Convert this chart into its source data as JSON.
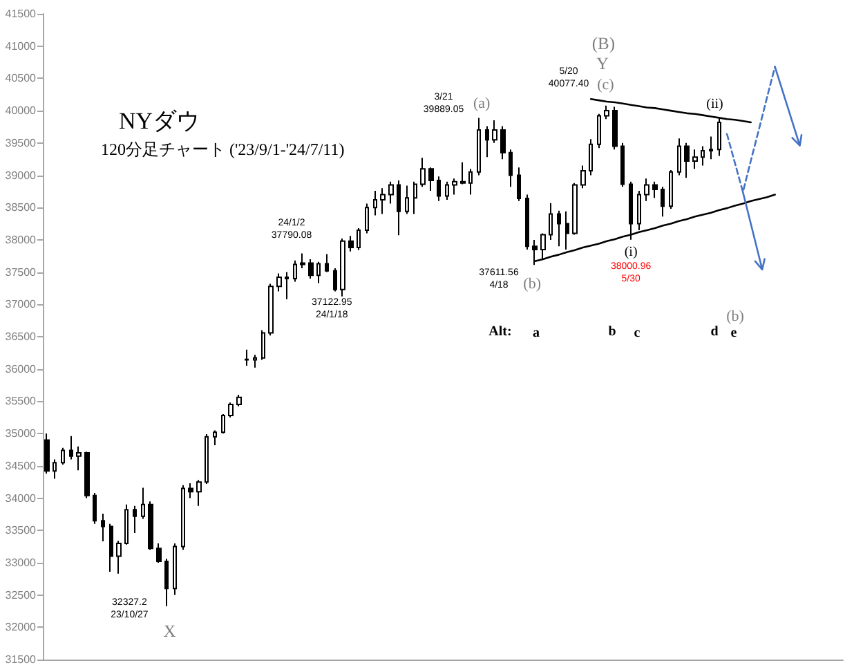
{
  "chart_data": {
    "type": "candlestick",
    "title": "NYダウ",
    "subtitle": "120分足チャート ('23/9/1-'24/7/11)",
    "color": "#000000",
    "categories": [
      null,
      null,
      null,
      null,
      null,
      null,
      null,
      null,
      null,
      null,
      null,
      null,
      null,
      null,
      null,
      null,
      null,
      null,
      null,
      null,
      null,
      null,
      null,
      null,
      null,
      null,
      null,
      null,
      null,
      null,
      null,
      null,
      null,
      null,
      null,
      null,
      null,
      null,
      null,
      null,
      null,
      null,
      null,
      null,
      null,
      null,
      null,
      null,
      null,
      null,
      null,
      null,
      null,
      null,
      null,
      null,
      null,
      null,
      null,
      null,
      null,
      null,
      null,
      null,
      null,
      null,
      null,
      null,
      null,
      null,
      null,
      null,
      null,
      null,
      null,
      null,
      null,
      null,
      null,
      null,
      null,
      null,
      null,
      null,
      null,
      null,
      null,
      null,
      null,
      null,
      null,
      null,
      null,
      null,
      null,
      null,
      null,
      null,
      null,
      null
    ],
    "ohlc": [
      [
        34900,
        35000,
        34380,
        34420
      ],
      [
        34420,
        34600,
        34300,
        34550
      ],
      [
        34550,
        34780,
        34520,
        34740
      ],
      [
        34740,
        34960,
        34600,
        34650
      ],
      [
        34650,
        34800,
        34430,
        34700
      ],
      [
        34700,
        34720,
        34000,
        34040
      ],
      [
        34040,
        34080,
        33600,
        33650
      ],
      [
        33650,
        33760,
        33330,
        33560
      ],
      [
        33560,
        33600,
        32860,
        33100
      ],
      [
        33100,
        33340,
        32830,
        33300
      ],
      [
        33300,
        33900,
        33280,
        33820
      ],
      [
        33820,
        33880,
        33460,
        33720
      ],
      [
        33720,
        34160,
        33680,
        33900
      ],
      [
        33900,
        33950,
        33200,
        33220
      ],
      [
        33220,
        33300,
        33000,
        33020
      ],
      [
        33020,
        33060,
        32327.2,
        32600
      ],
      [
        32600,
        33300,
        32500,
        33250
      ],
      [
        33250,
        34200,
        33200,
        34150
      ],
      [
        34150,
        34230,
        34000,
        34100
      ],
      [
        34100,
        34280,
        33880,
        34250
      ],
      [
        34250,
        34990,
        34220,
        34950
      ],
      [
        34950,
        35050,
        34820,
        35020
      ],
      [
        35020,
        35300,
        35000,
        35280
      ],
      [
        35280,
        35480,
        35250,
        35450
      ],
      [
        35450,
        35600,
        35420,
        35560
      ],
      [
        36150,
        36300,
        36050,
        36140
      ],
      [
        36140,
        36220,
        36020,
        36170
      ],
      [
        36170,
        36600,
        36140,
        36560
      ],
      [
        36560,
        37320,
        36520,
        37280
      ],
      [
        37280,
        37480,
        37200,
        37420
      ],
      [
        37420,
        37500,
        37080,
        37400
      ],
      [
        37400,
        37680,
        37350,
        37620
      ],
      [
        37620,
        37790.08,
        37560,
        37640
      ],
      [
        37640,
        37700,
        37400,
        37450
      ],
      [
        37450,
        37660,
        37330,
        37630
      ],
      [
        37630,
        37780,
        37500,
        37520
      ],
      [
        37520,
        37560,
        37200,
        37230
      ],
      [
        37230,
        38020,
        37122.95,
        37980
      ],
      [
        37980,
        38060,
        37820,
        37880
      ],
      [
        37880,
        38180,
        37840,
        38150
      ],
      [
        38150,
        38560,
        38100,
        38500
      ],
      [
        38500,
        38760,
        38380,
        38620
      ],
      [
        38620,
        38800,
        38400,
        38700
      ],
      [
        38700,
        38900,
        38560,
        38850
      ],
      [
        38850,
        38920,
        38070,
        38440
      ],
      [
        38440,
        38840,
        38400,
        38650
      ],
      [
        38650,
        38900,
        38400,
        38860
      ],
      [
        38860,
        39270,
        38820,
        39100
      ],
      [
        39100,
        39120,
        38760,
        38920
      ],
      [
        38920,
        38980,
        38600,
        38680
      ],
      [
        38680,
        38900,
        38620,
        38850
      ],
      [
        38850,
        38950,
        38700,
        38900
      ],
      [
        38900,
        39200,
        38860,
        38880
      ],
      [
        38880,
        39100,
        38700,
        39050
      ],
      [
        39050,
        39889.05,
        39000,
        39700
      ],
      [
        39700,
        39760,
        39280,
        39550
      ],
      [
        39550,
        39850,
        39500,
        39700
      ],
      [
        39700,
        39760,
        39250,
        39350
      ],
      [
        39350,
        39400,
        38820,
        39000
      ],
      [
        39000,
        39120,
        38600,
        38640
      ],
      [
        38640,
        38700,
        37850,
        37900
      ],
      [
        37900,
        38000,
        37611.56,
        37850
      ],
      [
        37850,
        38100,
        37700,
        38080
      ],
      [
        38080,
        38570,
        38000,
        38400
      ],
      [
        38400,
        38450,
        37900,
        38250
      ],
      [
        38250,
        38440,
        37850,
        38100
      ],
      [
        38100,
        38880,
        38080,
        38850
      ],
      [
        38850,
        39150,
        38800,
        39070
      ],
      [
        39070,
        39560,
        39000,
        39480
      ],
      [
        39480,
        39950,
        39420,
        39920
      ],
      [
        39920,
        40077.4,
        39870,
        40000
      ],
      [
        40000,
        40060,
        39400,
        39450
      ],
      [
        39450,
        39500,
        38820,
        38860
      ],
      [
        38860,
        38900,
        38000.96,
        38250
      ],
      [
        38250,
        38760,
        38150,
        38700
      ],
      [
        38700,
        38950,
        38600,
        38850
      ],
      [
        38850,
        38900,
        38650,
        38780
      ],
      [
        38780,
        38820,
        38360,
        38520
      ],
      [
        38520,
        39080,
        38480,
        39050
      ],
      [
        39050,
        39570,
        39000,
        39450
      ],
      [
        39450,
        39500,
        38960,
        39220
      ],
      [
        39220,
        39400,
        39100,
        39280
      ],
      [
        39280,
        39450,
        39150,
        39380
      ],
      [
        39380,
        39600,
        39250,
        39400
      ],
      [
        39400,
        39880,
        39300,
        39820
      ],
      null,
      null,
      null,
      null,
      null,
      null,
      null,
      null,
      null,
      null,
      null,
      null,
      null,
      null,
      null
    ],
    "series": [
      {
        "type": "line",
        "color": "#000000",
        "values": [
          null,
          null,
          null,
          null,
          null,
          null,
          null,
          null,
          null,
          null,
          null,
          null,
          null,
          null,
          null,
          null,
          null,
          null,
          null,
          null,
          null,
          null,
          null,
          null,
          null,
          null,
          null,
          null,
          null,
          null,
          null,
          null,
          null,
          null,
          null,
          null,
          null,
          null,
          null,
          null,
          null,
          null,
          null,
          null,
          null,
          null,
          null,
          null,
          null,
          null,
          null,
          null,
          null,
          null,
          null,
          null,
          null,
          null,
          null,
          null,
          null,
          null,
          null,
          null,
          null,
          null,
          null,
          null,
          40180,
          40160,
          40140,
          40130,
          40110,
          40090,
          40070,
          40050,
          40040,
          40020,
          40000,
          39980,
          39960,
          39950,
          39930,
          39910,
          39890,
          39870,
          39860,
          39840,
          39820,
          null,
          null,
          null,
          null,
          null,
          null,
          null,
          null,
          null,
          null,
          null
        ]
      },
      {
        "type": "line",
        "color": "#000000",
        "values": [
          null,
          null,
          null,
          null,
          null,
          null,
          null,
          null,
          null,
          null,
          null,
          null,
          null,
          null,
          null,
          null,
          null,
          null,
          null,
          null,
          null,
          null,
          null,
          null,
          null,
          null,
          null,
          null,
          null,
          null,
          null,
          null,
          null,
          null,
          null,
          null,
          null,
          null,
          null,
          null,
          null,
          null,
          null,
          null,
          null,
          null,
          null,
          null,
          null,
          null,
          null,
          null,
          null,
          null,
          null,
          null,
          null,
          null,
          null,
          null,
          null,
          37670,
          37700,
          37740,
          37770,
          37810,
          37840,
          37880,
          37910,
          37940,
          37980,
          38010,
          38050,
          38080,
          38120,
          38150,
          38180,
          38220,
          38250,
          38290,
          38320,
          38360,
          38390,
          38420,
          38460,
          38490,
          38530,
          38560,
          38600,
          38630,
          38660,
          38700,
          null,
          null,
          null,
          null,
          null,
          null,
          null,
          null
        ]
      },
      {
        "type": "line",
        "color": "#4472c4",
        "line_style": "dashed",
        "values": [
          null,
          null,
          null,
          null,
          null,
          null,
          null,
          null,
          null,
          null,
          null,
          null,
          null,
          null,
          null,
          null,
          null,
          null,
          null,
          null,
          null,
          null,
          null,
          null,
          null,
          null,
          null,
          null,
          null,
          null,
          null,
          null,
          null,
          null,
          null,
          null,
          null,
          null,
          null,
          null,
          null,
          null,
          null,
          null,
          null,
          null,
          null,
          null,
          null,
          null,
          null,
          null,
          null,
          null,
          null,
          null,
          null,
          null,
          null,
          null,
          null,
          null,
          null,
          null,
          null,
          null,
          null,
          null,
          null,
          null,
          null,
          null,
          null,
          null,
          null,
          null,
          null,
          null,
          null,
          null,
          null,
          null,
          null,
          null,
          null,
          39640,
          39190,
          38740,
          39230,
          39710,
          40200,
          40680,
          null,
          null,
          null,
          null,
          null,
          null,
          null,
          null
        ]
      }
    ],
    "ylim": [
      31500,
      41500
    ],
    "yticks": [
      31500,
      32000,
      32500,
      33000,
      33500,
      34000,
      34500,
      35000,
      35500,
      36000,
      36500,
      37000,
      37500,
      38000,
      38500,
      39000,
      39500,
      40000,
      40500,
      41000,
      41500
    ],
    "tick_labels": "y",
    "annotations": [
      "3/21\n39889.05",
      {
        "text": "(a)",
        "y": 39889.05
      },
      "5/20\n40077.40",
      {
        "text": "(c)",
        "y": 40077.4
      },
      "Y",
      "(B)",
      "24/1/2\n37790.08",
      {
        "text": "37122.95\n24/1/18",
        "y": 37122.95
      },
      "37611.56\n4/18",
      {
        "text": "(b)",
        "y": 37611.56
      },
      {
        "text": "(i)",
        "y": 38000.96
      },
      {
        "text": "38000.96\n5/30",
        "y": 38000.96
      },
      {
        "text": "(ii)",
        "y": 39880
      },
      "32327.2\n23/10/27",
      {
        "text": "X",
        "y": 32327.2
      },
      "Alt:",
      "a",
      "b",
      "c",
      "d",
      "e",
      "(b)"
    ]
  }
}
